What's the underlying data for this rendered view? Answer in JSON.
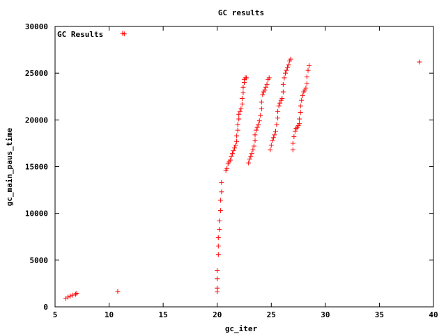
{
  "chart_data": {
    "type": "scatter",
    "title": "GC results",
    "xlabel": "gc_iter",
    "ylabel": "gc_main_paus_time",
    "xlim": [
      5,
      40
    ],
    "ylim": [
      0,
      30000
    ],
    "xticks": [
      5,
      10,
      15,
      20,
      25,
      30,
      35,
      40
    ],
    "yticks": [
      0,
      5000,
      10000,
      15000,
      20000,
      25000,
      30000
    ],
    "grid": false,
    "legend": "top-left",
    "series": [
      {
        "name": "GC Results",
        "color": "#ff0000",
        "marker": "plus",
        "points": [
          [
            6.0,
            900
          ],
          [
            6.2,
            1050
          ],
          [
            6.4,
            1150
          ],
          [
            6.6,
            1250
          ],
          [
            6.9,
            1350
          ],
          [
            7.0,
            1450
          ],
          [
            10.8,
            1650
          ],
          [
            11.4,
            29200
          ],
          [
            20.0,
            1600
          ],
          [
            20.0,
            2000
          ],
          [
            20.0,
            3000
          ],
          [
            20.0,
            3900
          ],
          [
            20.1,
            5600
          ],
          [
            20.1,
            6500
          ],
          [
            20.1,
            7400
          ],
          [
            20.2,
            8300
          ],
          [
            20.2,
            9200
          ],
          [
            20.3,
            10300
          ],
          [
            20.3,
            11400
          ],
          [
            20.4,
            12300
          ],
          [
            20.4,
            13300
          ],
          [
            20.8,
            14600
          ],
          [
            20.9,
            14800
          ],
          [
            21.0,
            15300
          ],
          [
            21.1,
            15500
          ],
          [
            21.2,
            15700
          ],
          [
            21.3,
            16100
          ],
          [
            21.4,
            16400
          ],
          [
            21.5,
            16700
          ],
          [
            21.6,
            17000
          ],
          [
            21.7,
            17300
          ],
          [
            21.8,
            17700
          ],
          [
            21.8,
            18300
          ],
          [
            21.9,
            18900
          ],
          [
            21.9,
            19500
          ],
          [
            22.0,
            20100
          ],
          [
            22.0,
            20600
          ],
          [
            22.1,
            20900
          ],
          [
            22.2,
            21200
          ],
          [
            22.3,
            21700
          ],
          [
            22.3,
            22300
          ],
          [
            22.4,
            22900
          ],
          [
            22.4,
            23500
          ],
          [
            22.5,
            24000
          ],
          [
            22.5,
            24300
          ],
          [
            22.6,
            24500
          ],
          [
            22.7,
            24500
          ],
          [
            22.9,
            15400
          ],
          [
            23.0,
            15800
          ],
          [
            23.1,
            16100
          ],
          [
            23.2,
            16400
          ],
          [
            23.3,
            16800
          ],
          [
            23.4,
            17200
          ],
          [
            23.5,
            17800
          ],
          [
            23.5,
            18400
          ],
          [
            23.6,
            18900
          ],
          [
            23.7,
            19200
          ],
          [
            23.8,
            19500
          ],
          [
            23.9,
            19900
          ],
          [
            24.0,
            20500
          ],
          [
            24.1,
            21200
          ],
          [
            24.1,
            21900
          ],
          [
            24.2,
            22700
          ],
          [
            24.3,
            23000
          ],
          [
            24.4,
            23200
          ],
          [
            24.5,
            23500
          ],
          [
            24.6,
            23800
          ],
          [
            24.7,
            24300
          ],
          [
            24.8,
            24500
          ],
          [
            24.9,
            16800
          ],
          [
            25.0,
            17300
          ],
          [
            25.1,
            17800
          ],
          [
            25.2,
            18100
          ],
          [
            25.3,
            18400
          ],
          [
            25.4,
            18800
          ],
          [
            25.5,
            19500
          ],
          [
            25.6,
            20200
          ],
          [
            25.6,
            20900
          ],
          [
            25.7,
            21500
          ],
          [
            25.8,
            21800
          ],
          [
            25.9,
            22100
          ],
          [
            26.0,
            22300
          ],
          [
            26.1,
            23000
          ],
          [
            26.1,
            23800
          ],
          [
            26.2,
            24500
          ],
          [
            26.3,
            25000
          ],
          [
            26.4,
            25300
          ],
          [
            26.5,
            25600
          ],
          [
            26.6,
            25900
          ],
          [
            26.7,
            26300
          ],
          [
            26.8,
            26500
          ],
          [
            27.0,
            16800
          ],
          [
            27.0,
            17500
          ],
          [
            27.1,
            18200
          ],
          [
            27.2,
            18800
          ],
          [
            27.3,
            19100
          ],
          [
            27.4,
            19200
          ],
          [
            27.5,
            19400
          ],
          [
            27.6,
            19600
          ],
          [
            27.6,
            20100
          ],
          [
            27.7,
            20800
          ],
          [
            27.7,
            21500
          ],
          [
            27.8,
            22100
          ],
          [
            27.9,
            22600
          ],
          [
            28.0,
            23000
          ],
          [
            28.1,
            23200
          ],
          [
            28.2,
            23400
          ],
          [
            28.3,
            23900
          ],
          [
            28.3,
            24600
          ],
          [
            28.4,
            25300
          ],
          [
            28.5,
            25800
          ],
          [
            38.7,
            26200
          ]
        ]
      }
    ]
  }
}
